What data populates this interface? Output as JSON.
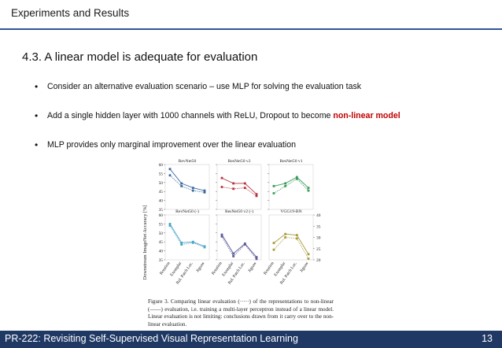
{
  "header": {
    "title": "Experiments and Results"
  },
  "section": {
    "title": "4.3. A linear model is adequate for evaluation"
  },
  "bullets": [
    {
      "text": "Consider an alternative evaluation scenario – use MLP for solving the evaluation task"
    },
    {
      "text_before": "Add a single hidden layer with 1000 channels with ReLU, Dropout to become ",
      "highlight": "non-linear model"
    },
    {
      "text": "MLP provides only marginal improvement over the linear evaluation"
    }
  ],
  "figure": {
    "ylabel": "Downstream ImageNet Accuracy [%]",
    "caption": "Figure 3.   Comparing linear evaluation (·····) of the representations to non-linear (——) evaluation, i.e. training a multi-layer perceptron instead of a linear model. Linear evaluation is not limiting: conclusions drawn from it carry over to the non-linear evaluation.",
    "x_categories": [
      "Rotation",
      "Exemplar",
      "Rel. Patch Loc.",
      "Jigsaw"
    ],
    "left_ticks": [
      "60",
      "55",
      "50",
      "45",
      "40",
      "35"
    ],
    "right_ticks": [
      "40",
      "35",
      "30",
      "25",
      "20"
    ],
    "colors": {
      "blue": "#3a6a9e",
      "red": "#b8323d",
      "green": "#3a9a5a",
      "cyan": "#4aa6c8",
      "purple": "#5b5b9a",
      "olive": "#a89a3a"
    }
  },
  "chart_data": [
    {
      "type": "line",
      "title": "RevNet50",
      "categories": [
        "Rotation",
        "Exemplar",
        "Rel. Patch Loc.",
        "Jigsaw"
      ],
      "ylim": [
        35,
        60
      ],
      "series": [
        {
          "values": [
            57.5,
            49.5,
            47.0,
            45.5
          ]
        },
        {
          "values": [
            54.0,
            48.0,
            45.5,
            44.5
          ]
        }
      ]
    },
    {
      "type": "line",
      "title": "ResNet50 v2",
      "categories": [
        "Rotation",
        "Exemplar",
        "Rel. Patch Loc.",
        "Jigsaw"
      ],
      "ylim": [
        35,
        60
      ],
      "series": [
        {
          "values": [
            52.5,
            49.5,
            49.5,
            43.5
          ]
        },
        {
          "values": [
            47.5,
            46.5,
            47.0,
            42.5
          ]
        }
      ]
    },
    {
      "type": "line",
      "title": "ResNet50 v1",
      "categories": [
        "Rotation",
        "Exemplar",
        "Rel. Patch Loc.",
        "Jigsaw"
      ],
      "ylim": [
        35,
        60
      ],
      "series": [
        {
          "values": [
            48.0,
            49.5,
            53.0,
            47.0
          ]
        },
        {
          "values": [
            44.0,
            48.0,
            52.0,
            45.5
          ]
        }
      ]
    },
    {
      "type": "line",
      "title": "RevNet50 (-)",
      "categories": [
        "Rotation",
        "Exemplar",
        "Rel. Patch Loc.",
        "Jigsaw"
      ],
      "ylim": [
        35,
        60
      ],
      "series": [
        {
          "values": [
            55.0,
            44.5,
            45.0,
            42.5
          ]
        },
        {
          "values": [
            54.0,
            43.5,
            44.5,
            42.0
          ]
        }
      ]
    },
    {
      "type": "line",
      "title": "ResNet50 v2 (-)",
      "categories": [
        "Rotation",
        "Exemplar",
        "Rel. Patch Loc.",
        "Jigsaw"
      ],
      "ylim": [
        35,
        60
      ],
      "series": [
        {
          "values": [
            49.0,
            38.5,
            44.0,
            36.5
          ]
        },
        {
          "values": [
            48.0,
            37.0,
            43.5,
            35.5
          ]
        }
      ]
    },
    {
      "type": "line",
      "title": "VGG19-BN",
      "categories": [
        "Rotation",
        "Exemplar",
        "Rel. Patch Loc.",
        "Jigsaw"
      ],
      "ylim": [
        20,
        40
      ],
      "series": [
        {
          "values": [
            27.5,
            31.5,
            31.0,
            22.5
          ]
        },
        {
          "values": [
            24.5,
            30.0,
            29.5,
            20.5
          ]
        }
      ]
    }
  ],
  "footer": {
    "title": "PR-222: Revisiting Self-Supervised Visual Representation Learning",
    "page": "13"
  }
}
